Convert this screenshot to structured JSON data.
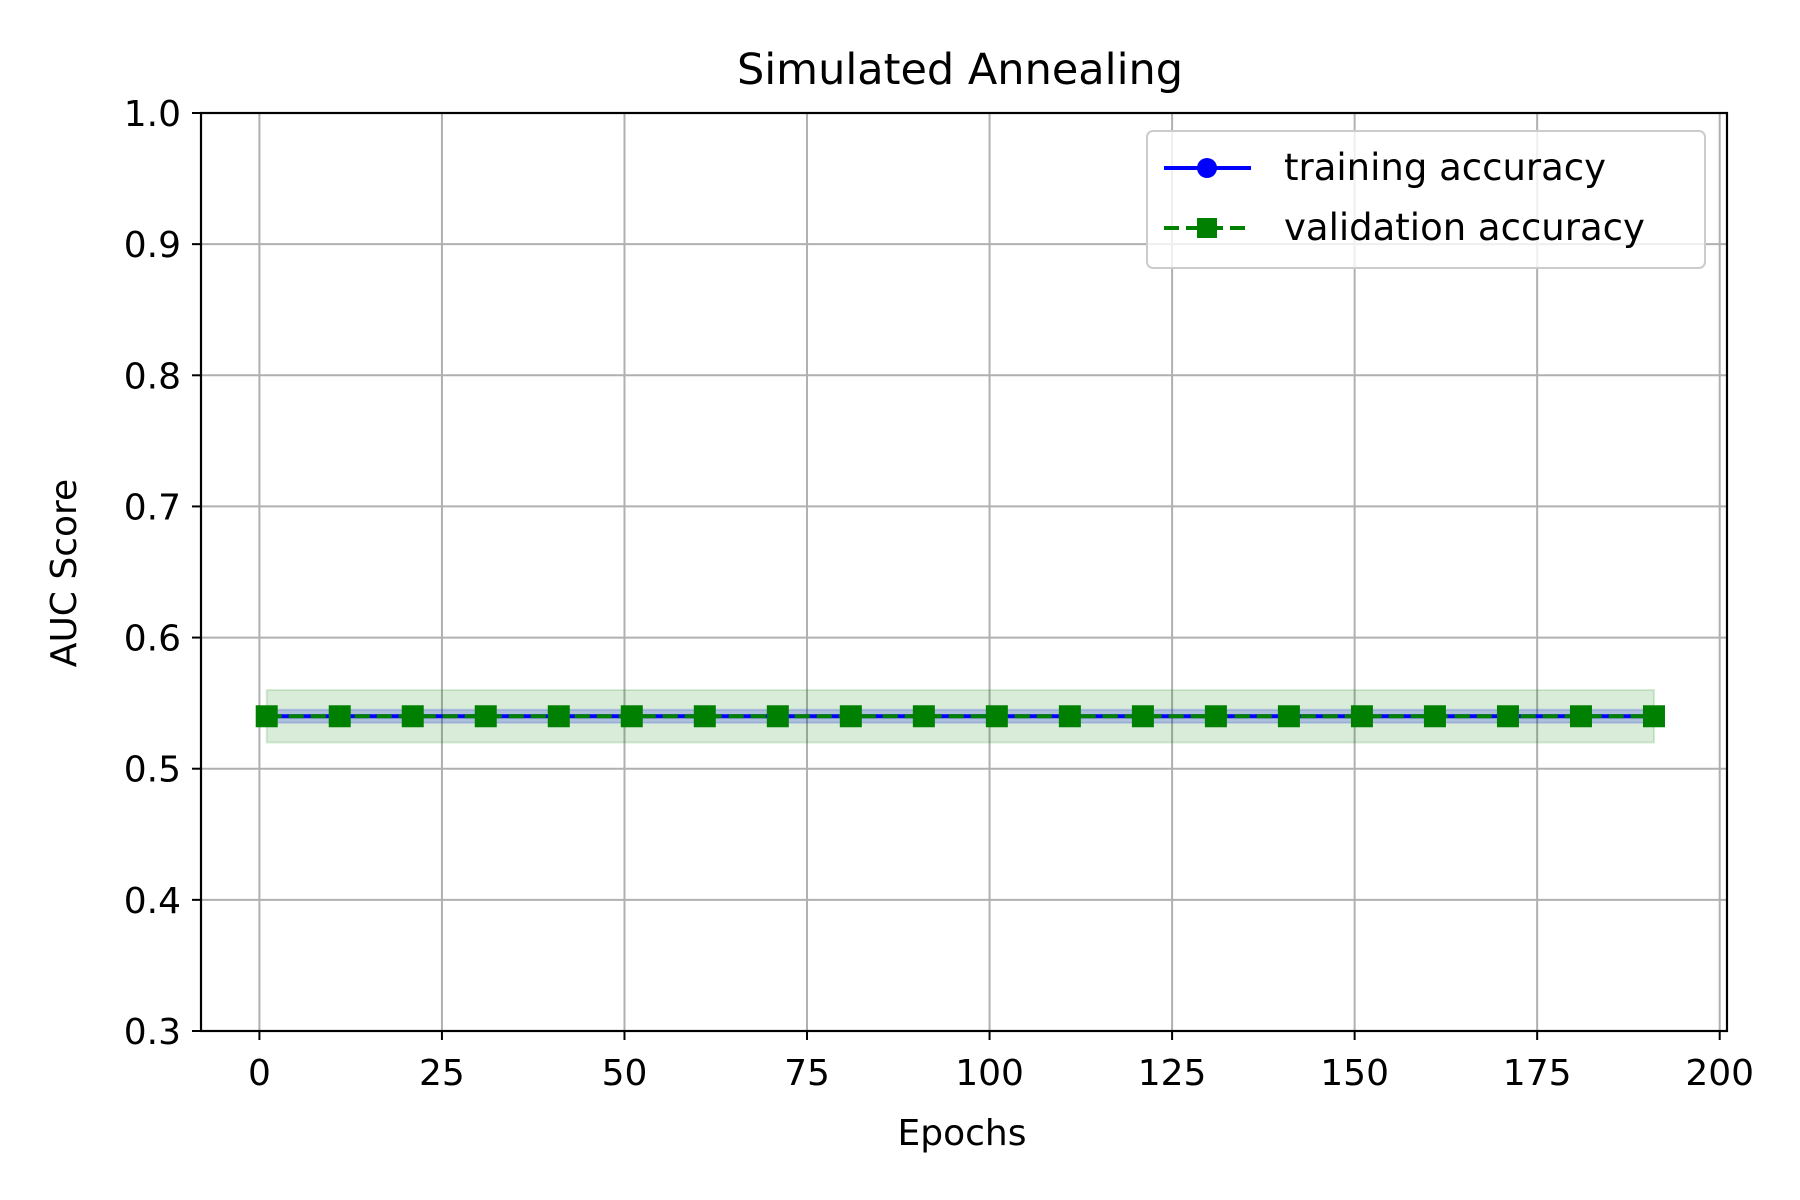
{
  "chart_data": {
    "type": "line",
    "title": "Simulated Annealing",
    "xlabel": "Epochs",
    "ylabel": "AUC Score",
    "xlim": [
      -8,
      201
    ],
    "ylim": [
      0.3,
      1.0
    ],
    "xticks": [
      0,
      25,
      50,
      75,
      100,
      125,
      150,
      175,
      200
    ],
    "yticks": [
      0.3,
      0.4,
      0.5,
      0.6,
      0.7,
      0.8,
      0.9,
      1.0
    ],
    "grid": true,
    "legend_position": "top-right",
    "x": [
      1,
      11,
      21,
      31,
      41,
      51,
      61,
      71,
      81,
      91,
      101,
      111,
      121,
      131,
      141,
      151,
      161,
      171,
      181,
      191
    ],
    "series": [
      {
        "name": "training accuracy",
        "color": "#0000ff",
        "linestyle": "solid",
        "marker": "circle",
        "values": [
          0.54,
          0.54,
          0.54,
          0.54,
          0.54,
          0.54,
          0.54,
          0.54,
          0.54,
          0.54,
          0.54,
          0.54,
          0.54,
          0.54,
          0.54,
          0.54,
          0.54,
          0.54,
          0.54,
          0.54
        ],
        "band": [
          0.535,
          0.545
        ],
        "band_color": "#0000ff"
      },
      {
        "name": "validation accuracy",
        "color": "#008000",
        "linestyle": "dashed",
        "marker": "square",
        "values": [
          0.54,
          0.54,
          0.54,
          0.54,
          0.54,
          0.54,
          0.54,
          0.54,
          0.54,
          0.54,
          0.54,
          0.54,
          0.54,
          0.54,
          0.54,
          0.54,
          0.54,
          0.54,
          0.54,
          0.54
        ],
        "band": [
          0.52,
          0.56
        ],
        "band_color": "#008000"
      }
    ]
  }
}
